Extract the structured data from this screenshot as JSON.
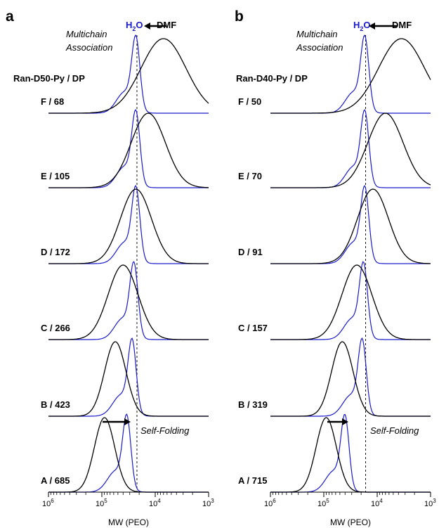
{
  "figure": {
    "background": "#ffffff",
    "color_h2o": "#1a1acc",
    "color_dmf": "#000000"
  },
  "chart_data": [
    {
      "panel_letter": "a",
      "type": "line",
      "x_scale": "log-reversed",
      "xlim": [
        1000000,
        1000
      ],
      "xlabel": "MW (PEO)",
      "x_tick_exponents": [
        "6",
        "5",
        "4",
        "3"
      ],
      "series_legend": {
        "h2o_main": "H",
        "h2o_sub": "2",
        "h2o_tail": "O",
        "dmf": "DMF"
      },
      "annotation_top": [
        "Multichain",
        "Association"
      ],
      "annotation_bottom": "Self-Folding",
      "header": "Ran-D50-Py / DP",
      "dashed_line_mw": 22000,
      "traces": [
        {
          "label": "F / 68",
          "h2o_peak_mw": 23000,
          "dmf_peak_mw": 7000,
          "dmf_width": 0.42
        },
        {
          "label": "E / 105",
          "h2o_peak_mw": 23000,
          "dmf_peak_mw": 13500,
          "dmf_width": 0.32
        },
        {
          "label": "D / 172",
          "h2o_peak_mw": 23000,
          "dmf_peak_mw": 23000,
          "dmf_width": 0.29
        },
        {
          "label": "C / 266",
          "h2o_peak_mw": 25000,
          "dmf_peak_mw": 40000,
          "dmf_width": 0.28
        },
        {
          "label": "B / 423",
          "h2o_peak_mw": 27000,
          "dmf_peak_mw": 56000,
          "dmf_width": 0.2
        },
        {
          "label": "A / 685",
          "h2o_peak_mw": 34000,
          "dmf_peak_mw": 89000,
          "dmf_width": 0.19
        }
      ]
    },
    {
      "panel_letter": "b",
      "type": "line",
      "x_scale": "log-reversed",
      "xlim": [
        1000000,
        1000
      ],
      "xlabel": "MW (PEO)",
      "x_tick_exponents": [
        "6",
        "5",
        "4",
        "3"
      ],
      "series_legend": {
        "h2o_main": "H",
        "h2o_sub": "2",
        "h2o_tail": "O",
        "dmf": "DMF"
      },
      "annotation_top": [
        "Multichain",
        "Association"
      ],
      "annotation_bottom": "Self-Folding",
      "header": "Ran-D40-Py / DP",
      "dashed_line_mw": 16500,
      "traces": [
        {
          "label": "F / 50",
          "h2o_peak_mw": 17000,
          "dmf_peak_mw": 3500,
          "dmf_width": 0.43
        },
        {
          "label": "E / 70",
          "h2o_peak_mw": 17000,
          "dmf_peak_mw": 7000,
          "dmf_width": 0.33
        },
        {
          "label": "D / 91",
          "h2o_peak_mw": 17000,
          "dmf_peak_mw": 12000,
          "dmf_width": 0.29
        },
        {
          "label": "C / 157",
          "h2o_peak_mw": 18000,
          "dmf_peak_mw": 24000,
          "dmf_width": 0.28
        },
        {
          "label": "B / 319",
          "h2o_peak_mw": 19000,
          "dmf_peak_mw": 45000,
          "dmf_width": 0.2
        },
        {
          "label": "A / 715",
          "h2o_peak_mw": 40000,
          "dmf_peak_mw": 90000,
          "dmf_width": 0.19
        }
      ]
    }
  ]
}
